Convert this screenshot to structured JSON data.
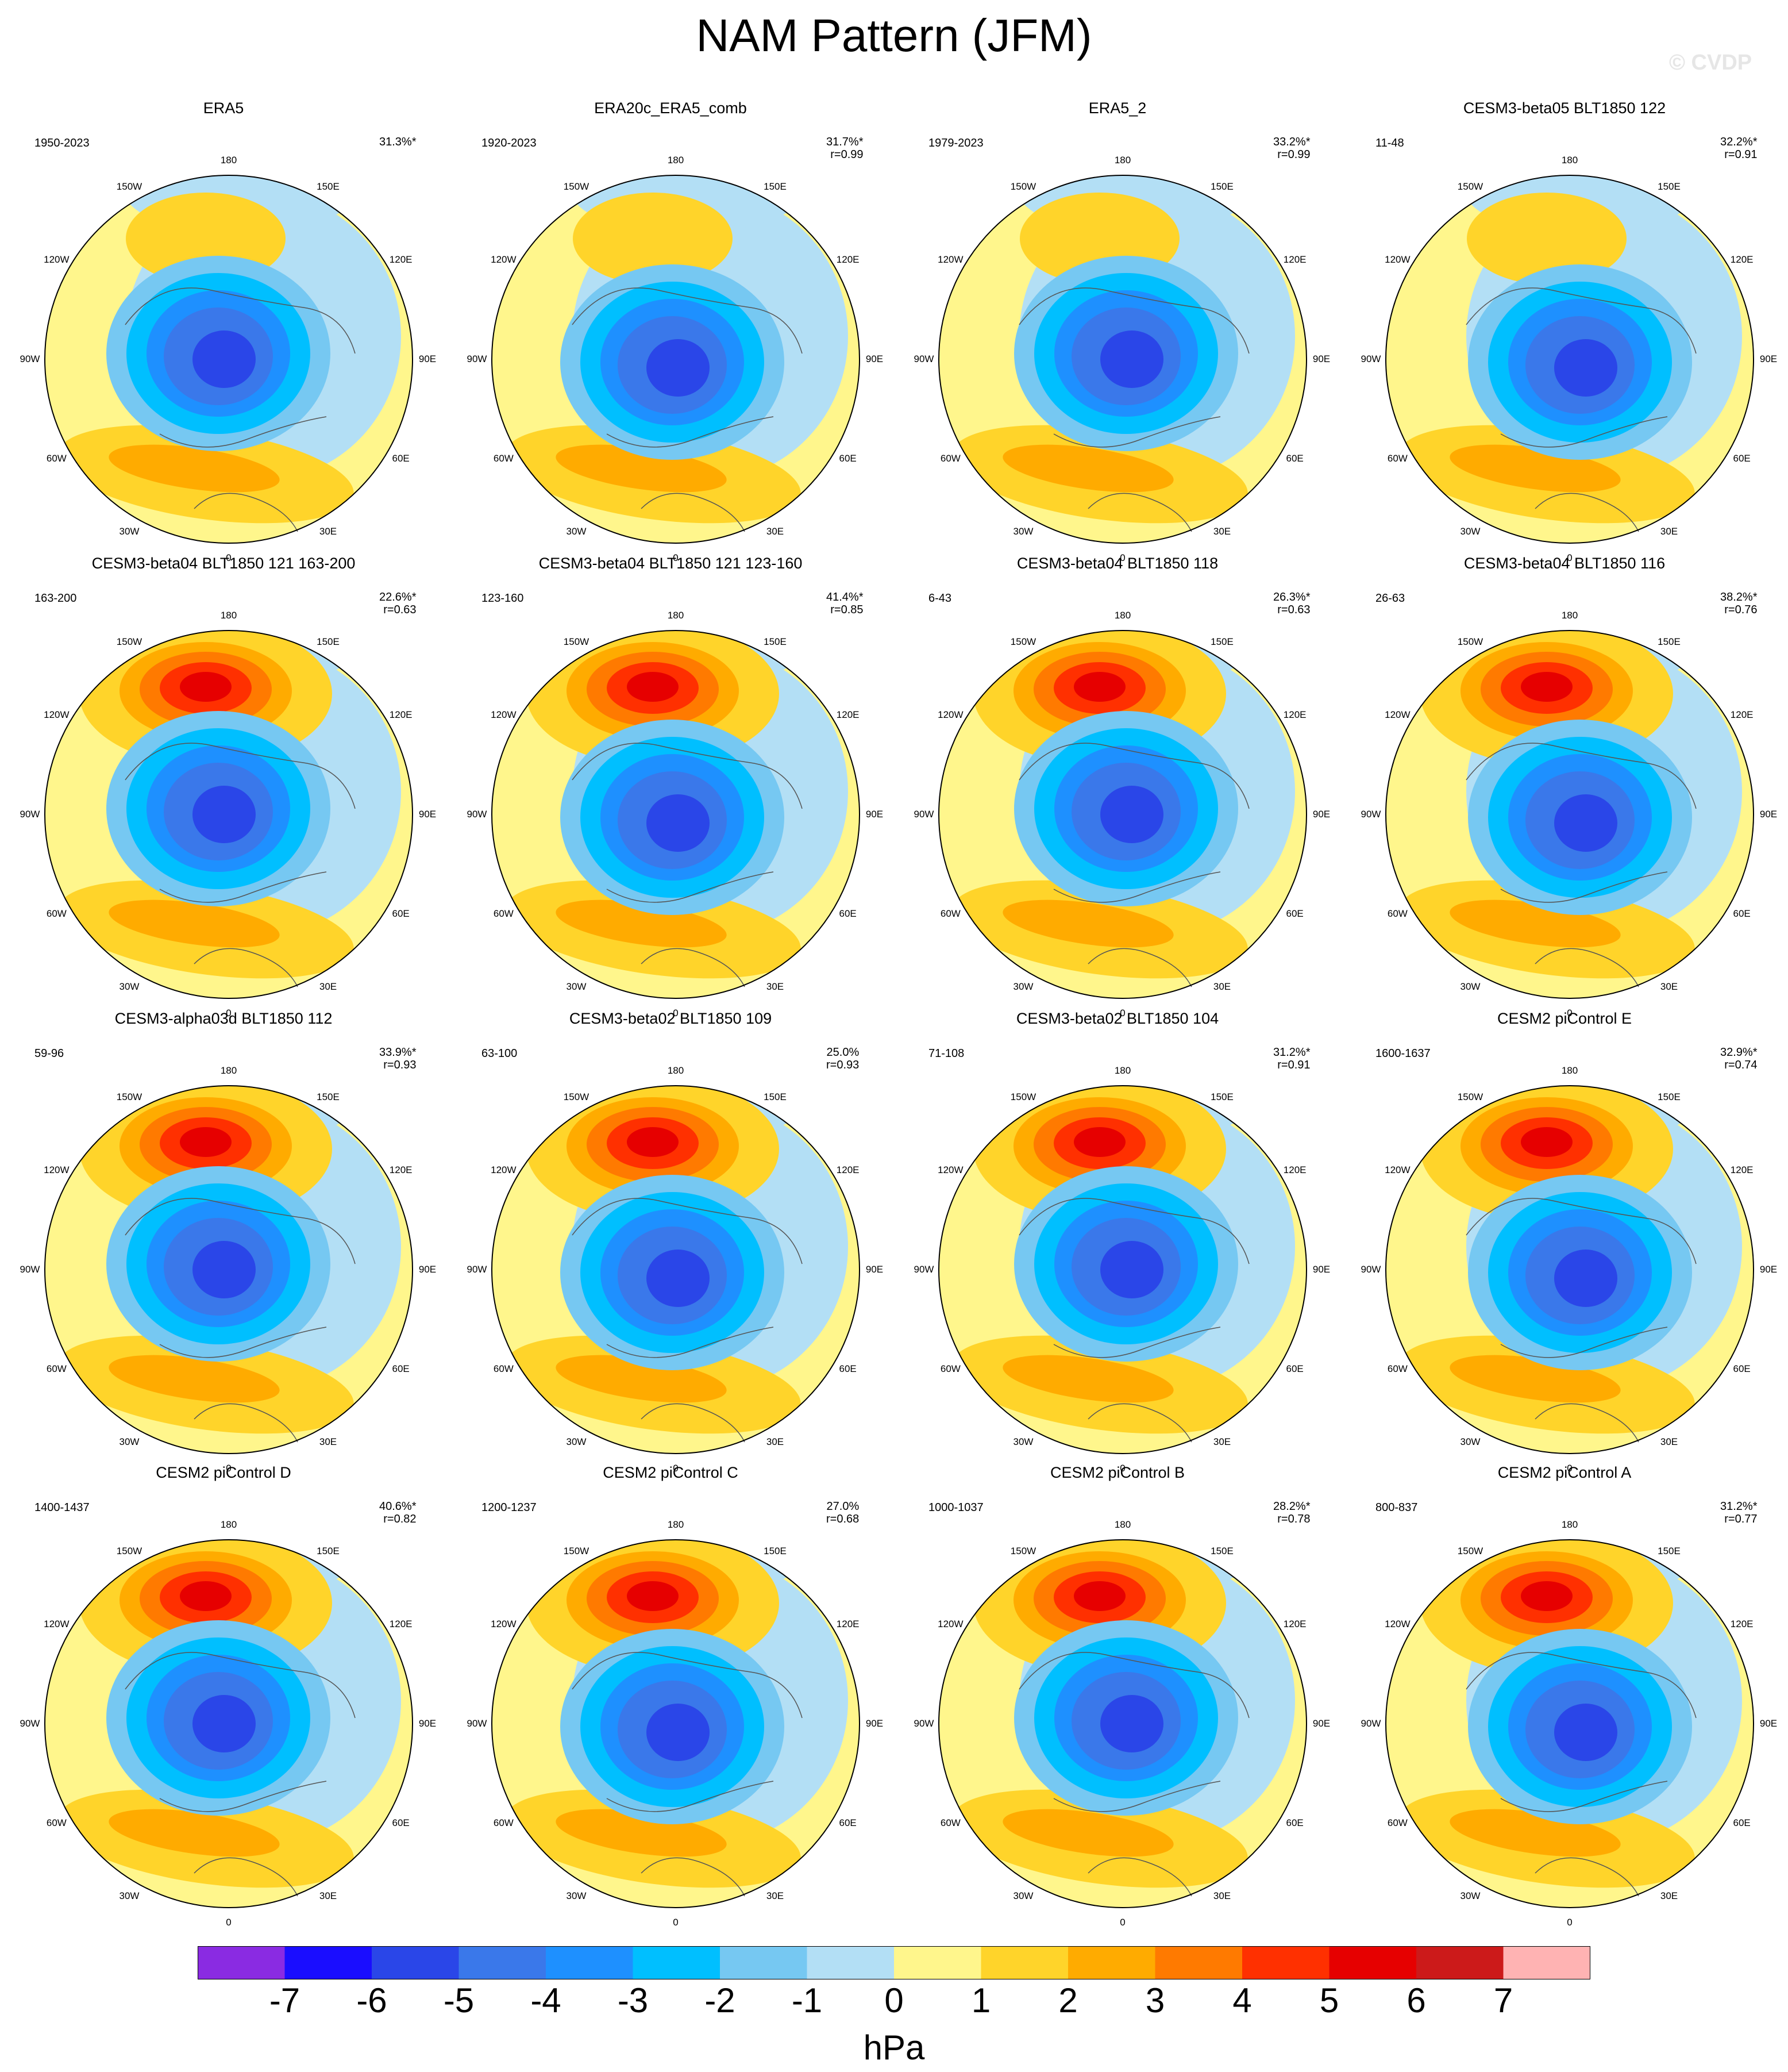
{
  "title": "NAM Pattern (JFM)",
  "watermark": "© CVDP",
  "units": "hPa",
  "lon_labels": [
    "180",
    "150E",
    "120E",
    "90E",
    "60E",
    "30E",
    "0",
    "30W",
    "60W",
    "90W",
    "120W",
    "150W"
  ],
  "panels": [
    {
      "title": "ERA5",
      "years": "1950-2023",
      "pct": "31.3%*",
      "r": ""
    },
    {
      "title": "ERA20c_ERA5_comb",
      "years": "1920-2023",
      "pct": "31.7%*",
      "r": "r=0.99"
    },
    {
      "title": "ERA5_2",
      "years": "1979-2023",
      "pct": "33.2%*",
      "r": "r=0.99"
    },
    {
      "title": "CESM3-beta05 BLT1850 122",
      "years": "11-48",
      "pct": "32.2%*",
      "r": "r=0.91"
    },
    {
      "title": "CESM3-beta04 BLT1850 121 163-200",
      "years": "163-200",
      "pct": "22.6%*",
      "r": "r=0.63"
    },
    {
      "title": "CESM3-beta04 BLT1850 121 123-160",
      "years": "123-160",
      "pct": "41.4%*",
      "r": "r=0.85"
    },
    {
      "title": "CESM3-beta04 BLT1850 118",
      "years": "6-43",
      "pct": "26.3%*",
      "r": "r=0.63"
    },
    {
      "title": "CESM3-beta04 BLT1850 116",
      "years": "26-63",
      "pct": "38.2%*",
      "r": "r=0.76"
    },
    {
      "title": "CESM3-alpha03d BLT1850 112",
      "years": "59-96",
      "pct": "33.9%*",
      "r": "r=0.93"
    },
    {
      "title": "CESM3-beta02 BLT1850 109",
      "years": "63-100",
      "pct": "25.0%",
      "r": "r=0.93"
    },
    {
      "title": "CESM3-beta02 BLT1850 104",
      "years": "71-108",
      "pct": "31.2%*",
      "r": "r=0.91"
    },
    {
      "title": "CESM2 piControl E",
      "years": "1600-1637",
      "pct": "32.9%*",
      "r": "r=0.74"
    },
    {
      "title": "CESM2 piControl D",
      "years": "1400-1437",
      "pct": "40.6%*",
      "r": "r=0.82"
    },
    {
      "title": "CESM2 piControl C",
      "years": "1200-1237",
      "pct": "27.0%",
      "r": "r=0.68"
    },
    {
      "title": "CESM2 piControl B",
      "years": "1000-1037",
      "pct": "28.2%*",
      "r": "r=0.78"
    },
    {
      "title": "CESM2 piControl A",
      "years": "800-837",
      "pct": "31.2%*",
      "r": "r=0.77"
    }
  ],
  "colorbar": {
    "ticks": [
      "-7",
      "-6",
      "-5",
      "-4",
      "-3",
      "-2",
      "-1",
      "0",
      "1",
      "2",
      "3",
      "4",
      "5",
      "6",
      "7"
    ],
    "colors": [
      "#8a2be2",
      "#1a0dff",
      "#2a46e8",
      "#3a78ea",
      "#1e90ff",
      "#00bfff",
      "#76c8f2",
      "#b3dff5",
      "#fff68c",
      "#ffd42a",
      "#ffab00",
      "#ff7a00",
      "#ff3000",
      "#e60000",
      "#cc1a1a",
      "#ffb3b3"
    ]
  }
}
